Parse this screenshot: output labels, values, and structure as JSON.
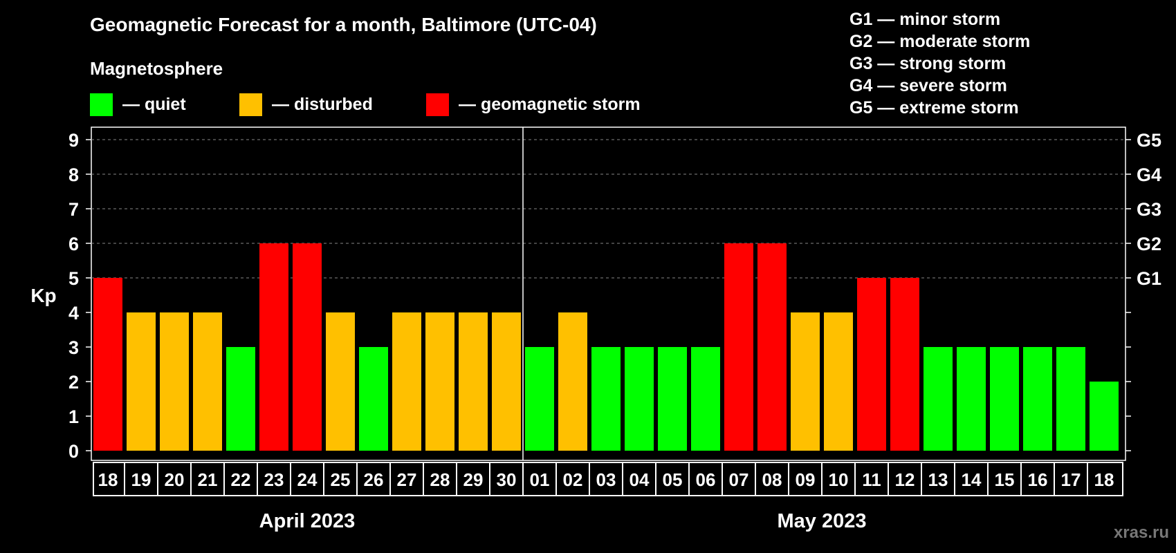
{
  "title": "Geomagnetic Forecast for a month, Baltimore (UTC-04)",
  "magnetosphere": {
    "title": "Magnetosphere",
    "legend": [
      {
        "label": "— quiet",
        "color": "#00ff00"
      },
      {
        "label": "— disturbed",
        "color": "#ffc000"
      },
      {
        "label": "— geomagnetic storm",
        "color": "#ff0000"
      }
    ]
  },
  "g_levels": [
    "G1 — minor storm",
    "G2 — moderate storm",
    "G3 — strong storm",
    "G4 — severe storm",
    "G5 — extreme storm"
  ],
  "watermark": "xras.ru",
  "chart_data": {
    "type": "bar",
    "title": "Geomagnetic Forecast for a month, Baltimore (UTC-04)",
    "ylabel": "Kp",
    "ylim": [
      0,
      9
    ],
    "yticks": [
      "0",
      "1",
      "2",
      "3",
      "4",
      "5",
      "6",
      "7",
      "8",
      "9"
    ],
    "right_axis": [
      {
        "kp": 5,
        "label": "G1"
      },
      {
        "kp": 6,
        "label": "G2"
      },
      {
        "kp": 7,
        "label": "G3"
      },
      {
        "kp": 8,
        "label": "G4"
      },
      {
        "kp": 9,
        "label": "G5"
      }
    ],
    "categories": [
      "18",
      "19",
      "20",
      "21",
      "22",
      "23",
      "24",
      "25",
      "26",
      "27",
      "28",
      "29",
      "30",
      "01",
      "02",
      "03",
      "04",
      "05",
      "06",
      "07",
      "08",
      "09",
      "10",
      "11",
      "12",
      "13",
      "14",
      "15",
      "16",
      "17",
      "18"
    ],
    "values": [
      5,
      4,
      4,
      4,
      3,
      6,
      6,
      4,
      3,
      4,
      4,
      4,
      4,
      3,
      4,
      3,
      3,
      3,
      3,
      6,
      6,
      4,
      4,
      5,
      5,
      3,
      3,
      3,
      3,
      3,
      2
    ],
    "status": [
      "storm",
      "disturbed",
      "disturbed",
      "disturbed",
      "quiet",
      "storm",
      "storm",
      "disturbed",
      "quiet",
      "disturbed",
      "disturbed",
      "disturbed",
      "disturbed",
      "quiet",
      "disturbed",
      "quiet",
      "quiet",
      "quiet",
      "quiet",
      "storm",
      "storm",
      "disturbed",
      "disturbed",
      "storm",
      "storm",
      "quiet",
      "quiet",
      "quiet",
      "quiet",
      "quiet",
      "quiet"
    ],
    "months": [
      {
        "label": "April 2023",
        "start": 0,
        "count": 13
      },
      {
        "label": "May 2023",
        "start": 13,
        "count": 18
      }
    ],
    "colors": {
      "quiet": "#00ff00",
      "disturbed": "#ffc000",
      "storm": "#ff0000"
    },
    "grid": "dashed"
  }
}
